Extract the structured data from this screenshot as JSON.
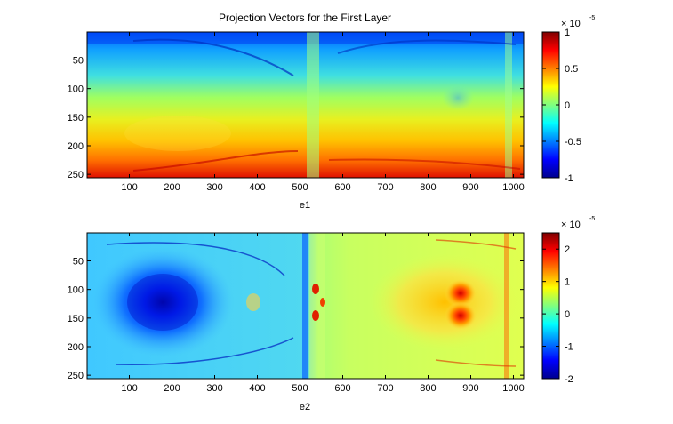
{
  "title": "Projection Vectors for the First Layer",
  "chart_data": [
    {
      "type": "heatmap",
      "xlabel": "e1",
      "xlim": [
        1,
        1024
      ],
      "ylim": [
        1,
        256
      ],
      "x_ticks": [
        "100",
        "200",
        "300",
        "400",
        "500",
        "600",
        "700",
        "800",
        "900",
        "1000"
      ],
      "y_ticks": [
        "50",
        "100",
        "150",
        "200",
        "250"
      ],
      "colorbar": {
        "multiplier": "× 10",
        "exponent": "-5",
        "range": [
          -1,
          1
        ],
        "ticks": [
          "1",
          "0.5",
          "0",
          "-0.5",
          "-1"
        ]
      }
    },
    {
      "type": "heatmap",
      "xlabel": "e2",
      "xlim": [
        1,
        1024
      ],
      "ylim": [
        1,
        256
      ],
      "x_ticks": [
        "100",
        "200",
        "300",
        "400",
        "500",
        "600",
        "700",
        "800",
        "900",
        "1000"
      ],
      "y_ticks": [
        "50",
        "100",
        "150",
        "200",
        "250"
      ],
      "colorbar": {
        "multiplier": "× 10",
        "exponent": "-5",
        "range": [
          -2,
          2.5
        ],
        "ticks": [
          "2",
          "1",
          "0",
          "-1",
          "-2"
        ]
      }
    }
  ]
}
